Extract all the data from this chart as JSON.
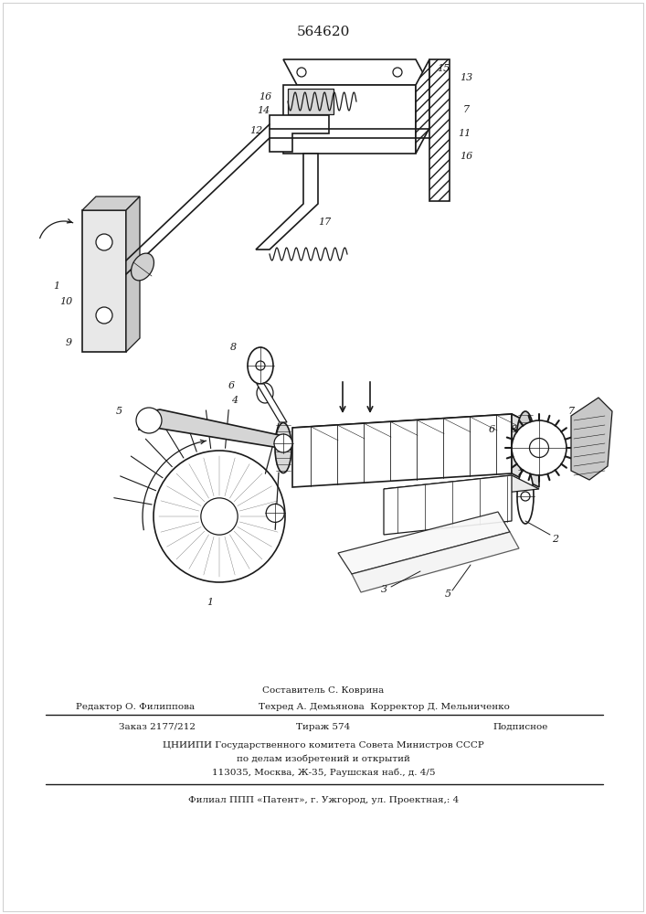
{
  "patent_number": "564620",
  "bg_color": "#ffffff",
  "drawing_color": "#1a1a1a",
  "footer": {
    "composer": "Составитель С. Коврина",
    "editor": "Редактор О. Филиппова",
    "techred": "Техред А. Демьянова  Корректор Д. Мельниченко",
    "order": "Заказ 2177/212",
    "tirazh": "Тираж 574",
    "podpisnoe": "Подписное",
    "tsniip": "ЦНИИПИ Государственного комитета Совета Министров СССР",
    "po_delam": "по делам изобретений и открытий",
    "address": "113035, Москва, Ж-35, Раушская наб., д. 4/5",
    "filial": "Филиал ППП «Патент», г. Ужгород, ул. Проектная,: 4"
  },
  "figsize": [
    7.07,
    10.0
  ],
  "dpi": 100
}
